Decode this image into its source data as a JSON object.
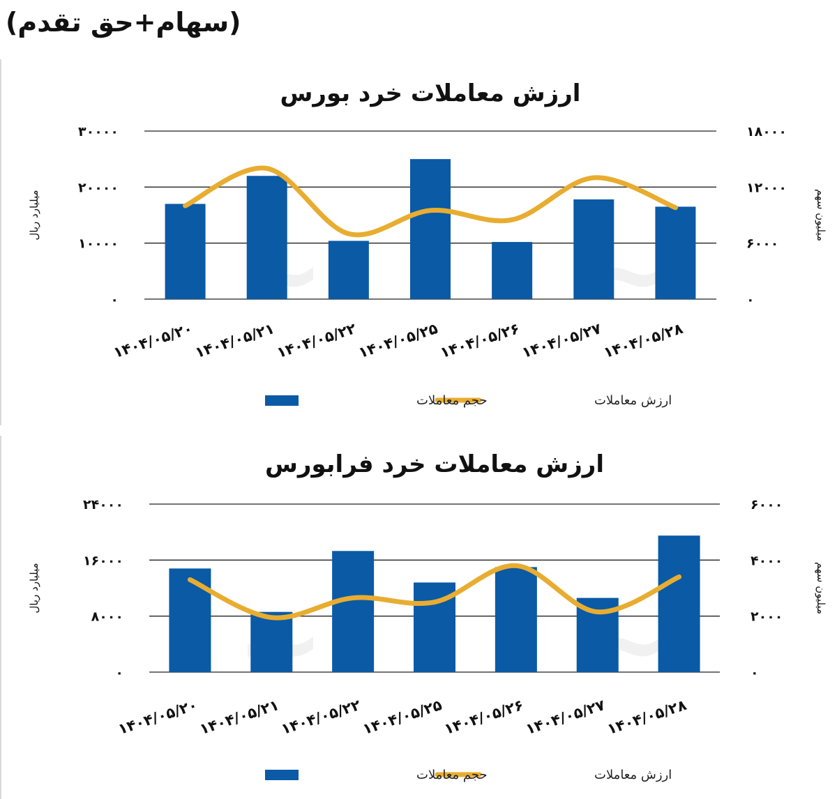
{
  "header_note": "(سهام+حق تقدم)",
  "colors": {
    "bar": "#0a5aa6",
    "line": "#e8ad30",
    "grid": "#222222"
  },
  "chart_data": [
    {
      "type": "bar",
      "title": "ارزش معاملات خرد بورس",
      "categories": [
        "1404/05/20",
        "1404/05/21",
        "1404/05/22",
        "1404/05/25",
        "1404/05/26",
        "1404/05/27",
        "1404/05/28"
      ],
      "category_labels": [
        "۱۴۰۴/۰۵/۲۰",
        "۱۴۰۴/۰۵/۲۱",
        "۱۴۰۴/۰۵/۲۲",
        "۱۴۰۴/۰۵/۲۵",
        "۱۴۰۴/۰۵/۲۶",
        "۱۴۰۴/۰۵/۲۷",
        "۱۴۰۴/۰۵/۲۸"
      ],
      "series": [
        {
          "name": "حجم معاملات",
          "type": "bar",
          "axis": "left",
          "values": [
            17000,
            22000,
            10400,
            25000,
            10200,
            17800,
            16500
          ]
        },
        {
          "name": "ارزش معاملات",
          "type": "line",
          "axis": "right",
          "values": [
            10000,
            14000,
            7000,
            9500,
            8500,
            13000,
            9800
          ]
        }
      ],
      "ylabel_left": "میلیارد ریال",
      "ylabel_right": "میلیون سهم",
      "ylim_left": [
        0,
        30000
      ],
      "ylim_right": [
        0,
        18000
      ],
      "yticks_left": [
        0,
        10000,
        20000,
        30000
      ],
      "yticks_right": [
        0,
        6000,
        12000,
        18000
      ],
      "ytick_labels_left": [
        "۰",
        "۱۰۰۰۰",
        "۲۰۰۰۰",
        "۳۰۰۰۰"
      ],
      "ytick_labels_right": [
        "۰",
        "۶۰۰۰",
        "۱۲۰۰۰",
        "۱۸۰۰۰"
      ],
      "grid": true,
      "legend_position": "bottom"
    },
    {
      "type": "bar",
      "title": "ارزش معاملات خرد فرابورس",
      "categories": [
        "1404/05/20",
        "1404/05/21",
        "1404/05/22",
        "1404/05/25",
        "1404/05/26",
        "1404/05/27",
        "1404/05/28"
      ],
      "category_labels": [
        "۱۴۰۴/۰۵/۲۰",
        "۱۴۰۴/۰۵/۲۱",
        "۱۴۰۴/۰۵/۲۲",
        "۱۴۰۴/۰۵/۲۵",
        "۱۴۰۴/۰۵/۲۶",
        "۱۴۰۴/۰۵/۲۷",
        "۱۴۰۴/۰۵/۲۸"
      ],
      "series": [
        {
          "name": "حجم معاملات",
          "type": "bar",
          "axis": "left",
          "values": [
            14800,
            8600,
            17300,
            12800,
            15000,
            10600,
            19500
          ]
        },
        {
          "name": "ارزش معاملات",
          "type": "line",
          "axis": "right",
          "values": [
            3300,
            1950,
            2650,
            2500,
            3800,
            2150,
            3400
          ]
        }
      ],
      "ylabel_left": "میلیارد ریال",
      "ylabel_right": "میلیون سهم",
      "ylim_left": [
        0,
        24000
      ],
      "ylim_right": [
        0,
        6000
      ],
      "yticks_left": [
        0,
        8000,
        16000,
        24000
      ],
      "yticks_right": [
        0,
        2000,
        4000,
        6000
      ],
      "ytick_labels_left": [
        "۰",
        "۸۰۰۰",
        "۱۶۰۰۰",
        "۲۴۰۰۰"
      ],
      "ytick_labels_right": [
        "۰",
        "۲۰۰۰",
        "۴۰۰۰",
        "۶۰۰۰"
      ],
      "grid": true,
      "legend_position": "bottom"
    }
  ]
}
